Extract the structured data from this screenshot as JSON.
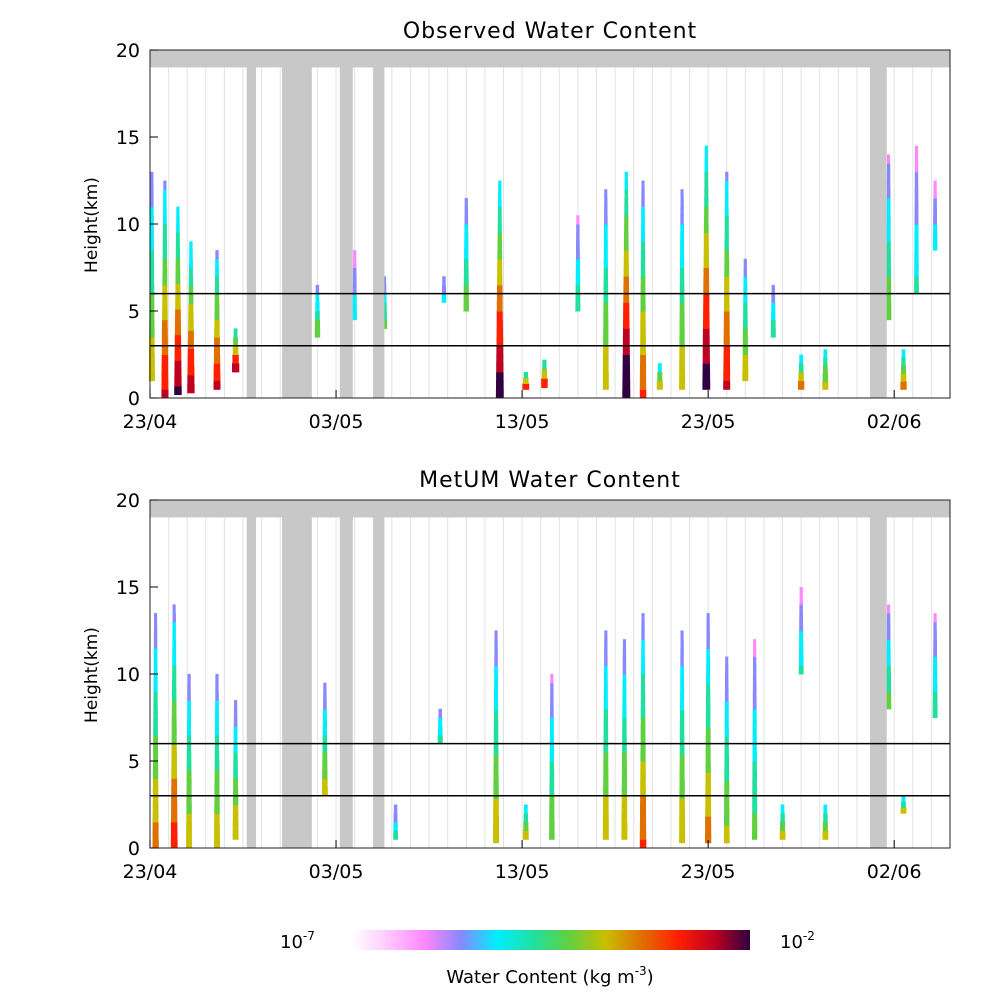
{
  "chart_data": [
    {
      "type": "heatmap",
      "title": "Observed Water Content",
      "ylabel": "Height(km)",
      "xlabel": "",
      "x_tick_labels": [
        "23/04",
        "03/05",
        "13/05",
        "23/05",
        "02/06"
      ],
      "x_tick_days": [
        0,
        10,
        20,
        30,
        40
      ],
      "ylim": [
        0,
        20
      ],
      "y_ticks": [
        0,
        5,
        10,
        15,
        20
      ],
      "xlim_days": [
        0,
        43
      ],
      "reference_lines_km": [
        3,
        6
      ],
      "missing_data_days": [
        [
          5.2,
          5.7
        ],
        [
          7.1,
          8.7
        ],
        [
          10.2,
          10.9
        ],
        [
          12.0,
          12.6
        ],
        [
          38.7,
          39.6
        ]
      ],
      "missing_data_top_km": [
        19,
        20
      ],
      "cloud_columns": [
        {
          "day": 0.1,
          "bottom": 1.0,
          "top": 13.0,
          "intensity": 0.6
        },
        {
          "day": 0.8,
          "bottom": 0.0,
          "top": 12.5,
          "intensity": 0.8
        },
        {
          "day": 1.5,
          "bottom": 0.2,
          "top": 11.0,
          "intensity": 0.9
        },
        {
          "day": 2.2,
          "bottom": 0.3,
          "top": 9.0,
          "intensity": 0.85
        },
        {
          "day": 3.6,
          "bottom": 0.5,
          "top": 8.5,
          "intensity": 0.8
        },
        {
          "day": 4.6,
          "bottom": 1.5,
          "top": 4.0,
          "intensity": 0.85
        },
        {
          "day": 9.0,
          "bottom": 3.5,
          "top": 6.5,
          "intensity": 0.5
        },
        {
          "day": 11.0,
          "bottom": 4.5,
          "top": 8.5,
          "intensity": 0.3
        },
        {
          "day": 12.6,
          "bottom": 4.0,
          "top": 7.0,
          "intensity": 0.45
        },
        {
          "day": 15.8,
          "bottom": 5.5,
          "top": 7.0,
          "intensity": 0.3
        },
        {
          "day": 17.0,
          "bottom": 5.0,
          "top": 11.5,
          "intensity": 0.5
        },
        {
          "day": 18.8,
          "bottom": 0.0,
          "top": 12.5,
          "intensity": 0.95
        },
        {
          "day": 20.2,
          "bottom": 0.5,
          "top": 1.5,
          "intensity": 0.75
        },
        {
          "day": 21.2,
          "bottom": 0.6,
          "top": 2.2,
          "intensity": 0.7
        },
        {
          "day": 23.0,
          "bottom": 5.0,
          "top": 10.5,
          "intensity": 0.4
        },
        {
          "day": 24.5,
          "bottom": 0.5,
          "top": 12.0,
          "intensity": 0.6
        },
        {
          "day": 25.6,
          "bottom": 0.0,
          "top": 13.0,
          "intensity": 1.0
        },
        {
          "day": 26.5,
          "bottom": 0.0,
          "top": 12.5,
          "intensity": 0.7
        },
        {
          "day": 27.4,
          "bottom": 0.5,
          "top": 2.0,
          "intensity": 0.6
        },
        {
          "day": 28.6,
          "bottom": 0.5,
          "top": 12.0,
          "intensity": 0.6
        },
        {
          "day": 29.9,
          "bottom": 0.5,
          "top": 14.5,
          "intensity": 0.95
        },
        {
          "day": 31.0,
          "bottom": 0.5,
          "top": 13.0,
          "intensity": 0.8
        },
        {
          "day": 32.0,
          "bottom": 1.0,
          "top": 8.0,
          "intensity": 0.6
        },
        {
          "day": 33.5,
          "bottom": 3.5,
          "top": 6.5,
          "intensity": 0.4
        },
        {
          "day": 35.0,
          "bottom": 0.5,
          "top": 2.5,
          "intensity": 0.65
        },
        {
          "day": 36.3,
          "bottom": 0.5,
          "top": 2.8,
          "intensity": 0.6
        },
        {
          "day": 39.7,
          "bottom": 4.5,
          "top": 14.0,
          "intensity": 0.5
        },
        {
          "day": 40.5,
          "bottom": 0.5,
          "top": 2.8,
          "intensity": 0.65
        },
        {
          "day": 41.2,
          "bottom": 6.0,
          "top": 14.5,
          "intensity": 0.35
        },
        {
          "day": 42.2,
          "bottom": 8.5,
          "top": 12.5,
          "intensity": 0.3
        }
      ]
    },
    {
      "type": "heatmap",
      "title": "MetUM Water Content",
      "ylabel": "Height(km)",
      "xlabel": "",
      "x_tick_labels": [
        "23/04",
        "03/05",
        "13/05",
        "23/05",
        "02/06"
      ],
      "x_tick_days": [
        0,
        10,
        20,
        30,
        40
      ],
      "ylim": [
        0,
        20
      ],
      "y_ticks": [
        0,
        5,
        10,
        15,
        20
      ],
      "xlim_days": [
        0,
        43
      ],
      "reference_lines_km": [
        3,
        6
      ],
      "missing_data_days": [
        [
          5.2,
          5.7
        ],
        [
          7.1,
          8.7
        ],
        [
          10.2,
          10.9
        ],
        [
          12.0,
          12.6
        ],
        [
          38.7,
          39.6
        ]
      ],
      "missing_data_top_km": [
        19,
        20
      ],
      "cloud_columns": [
        {
          "day": 0.3,
          "bottom": 0.0,
          "top": 13.5,
          "intensity": 0.65
        },
        {
          "day": 1.3,
          "bottom": 0.0,
          "top": 14.0,
          "intensity": 0.75
        },
        {
          "day": 2.1,
          "bottom": 0.0,
          "top": 10.0,
          "intensity": 0.6
        },
        {
          "day": 3.6,
          "bottom": 0.0,
          "top": 10.0,
          "intensity": 0.6
        },
        {
          "day": 4.6,
          "bottom": 0.5,
          "top": 8.5,
          "intensity": 0.6
        },
        {
          "day": 9.4,
          "bottom": 3.0,
          "top": 9.5,
          "intensity": 0.55
        },
        {
          "day": 13.2,
          "bottom": 0.5,
          "top": 2.5,
          "intensity": 0.35
        },
        {
          "day": 15.6,
          "bottom": 6.0,
          "top": 8.0,
          "intensity": 0.4
        },
        {
          "day": 18.6,
          "bottom": 0.3,
          "top": 12.5,
          "intensity": 0.6
        },
        {
          "day": 20.2,
          "bottom": 0.5,
          "top": 2.5,
          "intensity": 0.55
        },
        {
          "day": 21.6,
          "bottom": 0.5,
          "top": 10.0,
          "intensity": 0.5
        },
        {
          "day": 24.5,
          "bottom": 0.5,
          "top": 12.5,
          "intensity": 0.6
        },
        {
          "day": 25.5,
          "bottom": 0.5,
          "top": 12.0,
          "intensity": 0.6
        },
        {
          "day": 26.5,
          "bottom": 0.0,
          "top": 13.5,
          "intensity": 0.7
        },
        {
          "day": 28.6,
          "bottom": 0.3,
          "top": 12.5,
          "intensity": 0.6
        },
        {
          "day": 30.0,
          "bottom": 0.3,
          "top": 13.5,
          "intensity": 0.65
        },
        {
          "day": 31.0,
          "bottom": 0.3,
          "top": 11.0,
          "intensity": 0.55
        },
        {
          "day": 32.5,
          "bottom": 0.5,
          "top": 12.0,
          "intensity": 0.45
        },
        {
          "day": 34.0,
          "bottom": 0.5,
          "top": 2.5,
          "intensity": 0.55
        },
        {
          "day": 35.0,
          "bottom": 10.0,
          "top": 15.0,
          "intensity": 0.35
        },
        {
          "day": 36.3,
          "bottom": 0.5,
          "top": 2.5,
          "intensity": 0.55
        },
        {
          "day": 39.7,
          "bottom": 8.0,
          "top": 14.0,
          "intensity": 0.45
        },
        {
          "day": 40.5,
          "bottom": 2.0,
          "top": 3.0,
          "intensity": 0.55
        },
        {
          "day": 42.2,
          "bottom": 7.5,
          "top": 13.5,
          "intensity": 0.4
        }
      ]
    }
  ],
  "colorbar": {
    "min_label_base": "10",
    "min_label_exp": "-7",
    "max_label_base": "10",
    "max_label_exp": "-2",
    "title_main": "Water Content (kg m",
    "title_exp": "-3",
    "title_close": ")",
    "colors": [
      "#ffffff",
      "#ffc8ff",
      "#ff88ff",
      "#8888ff",
      "#00eeff",
      "#20e0a0",
      "#60d040",
      "#c8c000",
      "#e07000",
      "#ff2000",
      "#c00020",
      "#300040"
    ]
  }
}
